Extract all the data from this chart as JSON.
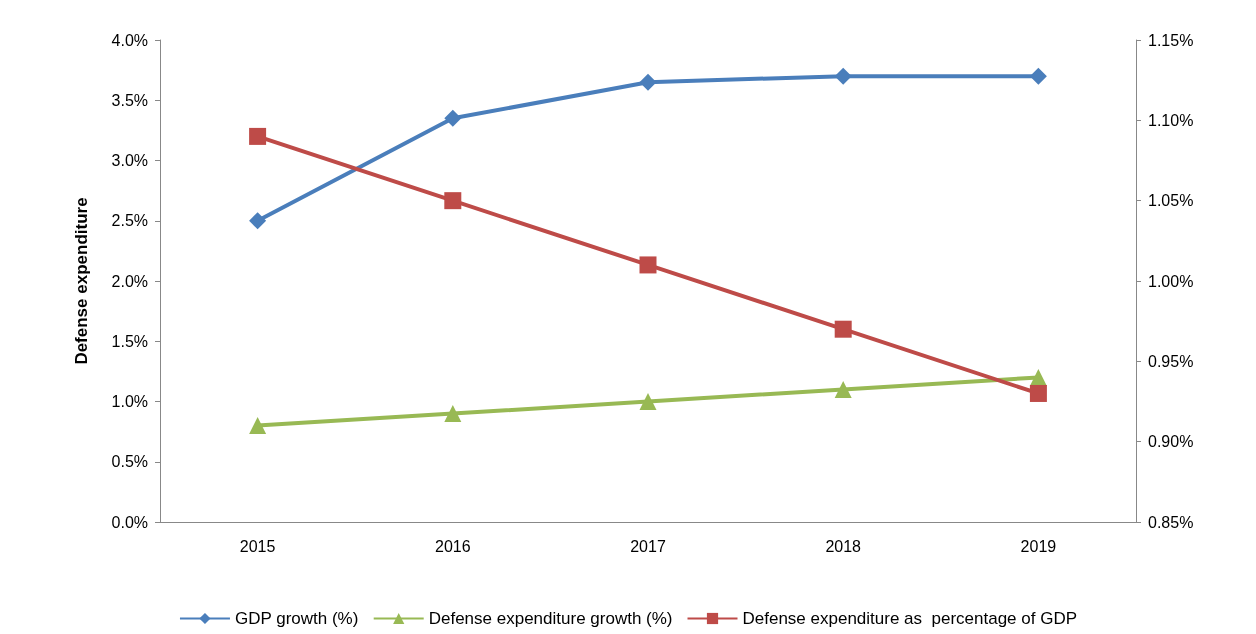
{
  "chart_data": {
    "type": "line",
    "ylabel": "Defense expenditure",
    "categories": [
      "2015",
      "2016",
      "2017",
      "2018",
      "2019"
    ],
    "series": [
      {
        "name": "GDP growth (%)",
        "color": "#4a7ebb",
        "marker": "diamond",
        "values": [
          2.5,
          3.35,
          3.65,
          3.7,
          3.7
        ]
      },
      {
        "name": "Defense expenditure growth (%)",
        "color": "#98b954",
        "marker": "triangle",
        "values": [
          0.8,
          0.9,
          1.0,
          1.1,
          1.2
        ]
      },
      {
        "name": "Defense expenditure as  percentage of GDP",
        "color": "#be4b48",
        "marker": "square",
        "axis": "y2",
        "values": [
          1.09,
          1.05,
          1.01,
          0.97,
          0.93
        ]
      }
    ],
    "ylim": [
      0,
      4
    ],
    "yticks": [
      {
        "value": 0,
        "label": "0.0%"
      },
      {
        "value": 0.5,
        "label": "0.5%"
      },
      {
        "value": 1,
        "label": "1.0%"
      },
      {
        "value": 1.5,
        "label": "1.5%"
      },
      {
        "value": 2,
        "label": "2.0%"
      },
      {
        "value": 2.5,
        "label": "2.5%"
      },
      {
        "value": 3,
        "label": "3.0%"
      },
      {
        "value": 3.5,
        "label": "3.5%"
      },
      {
        "value": 4,
        "label": "4.0%"
      }
    ],
    "y2lim": [
      0.85,
      1.15
    ],
    "y2ticks": [
      {
        "value": 0.85,
        "label": "0.85%"
      },
      {
        "value": 0.9,
        "label": "0.90%"
      },
      {
        "value": 0.95,
        "label": "0.95%"
      },
      {
        "value": 1,
        "label": "1.00%"
      },
      {
        "value": 1.05,
        "label": "1.05%"
      },
      {
        "value": 1.1,
        "label": "1.10%"
      },
      {
        "value": 1.15,
        "label": "1.15%"
      }
    ],
    "grid": false,
    "legend": "bottom",
    "line_style": "solid"
  }
}
